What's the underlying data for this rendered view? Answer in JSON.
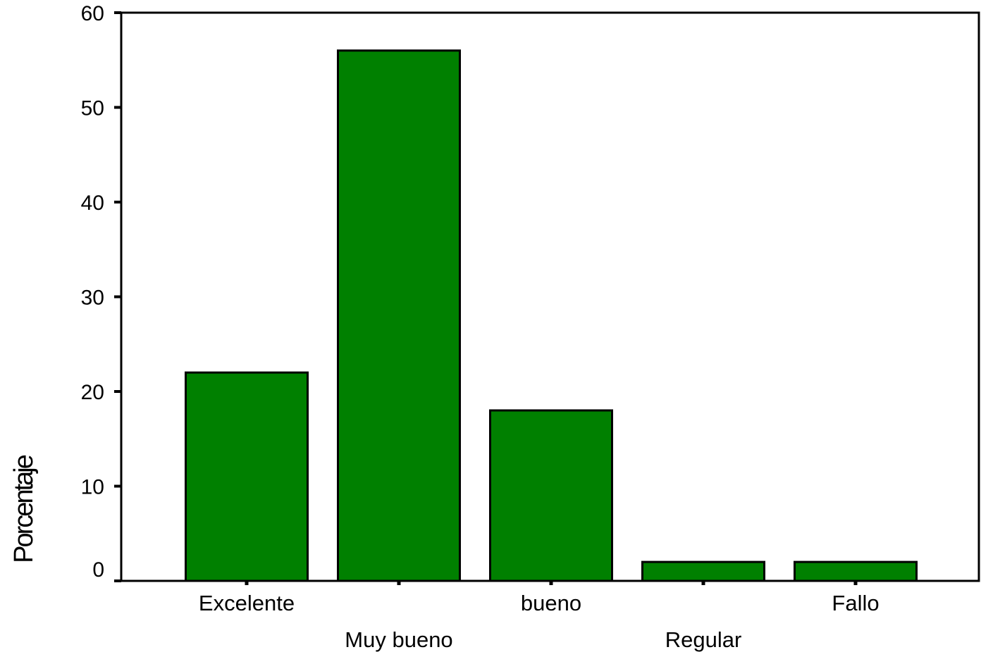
{
  "chart_data": {
    "type": "bar",
    "title": "",
    "xlabel": "",
    "ylabel": "Porcentaje",
    "categories": [
      "Excelente",
      "Muy bueno",
      "bueno",
      "Regular",
      "Fallo"
    ],
    "values": [
      22,
      56,
      18,
      2,
      2
    ],
    "ylim": [
      0,
      60
    ],
    "yticks": [
      0,
      10,
      20,
      30,
      40,
      50,
      60
    ],
    "grid": false,
    "bar_color": "#008000",
    "bar_edge_color": "#000000"
  }
}
